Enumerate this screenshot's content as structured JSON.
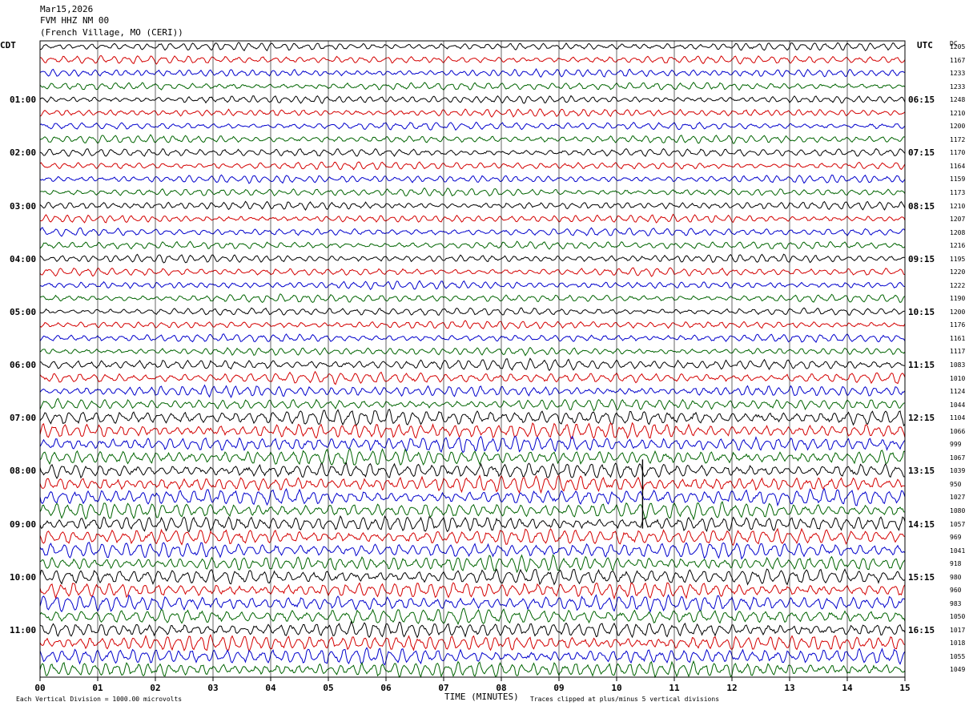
{
  "header": {
    "date": "Mar15,2026",
    "station": "FVM HHZ NM 00",
    "location": "(French Village, MO (CERI))"
  },
  "left_tz": "CDT",
  "right_tz": "UTC",
  "right_col_header": "DC",
  "footer": {
    "left_note": "Each Vertical Division = 1000.00 microvolts",
    "xlabel": "TIME (MINUTES)",
    "right_note": "Traces clipped at plus/minus 5 vertical divisions"
  },
  "chart_data": {
    "type": "line",
    "title": "",
    "xlabel": "TIME (MINUTES)",
    "ylabel": "",
    "xlim": [
      0,
      15
    ],
    "x_ticks": [
      "00",
      "01",
      "02",
      "03",
      "04",
      "05",
      "06",
      "07",
      "08",
      "09",
      "10",
      "11",
      "12",
      "13",
      "14",
      "15"
    ],
    "grid": true,
    "trace_colors": [
      "#000000",
      "#d40000",
      "#0000cc",
      "#006400"
    ],
    "rows": 48,
    "cdt_labels": [
      "01:00",
      "02:00",
      "03:00",
      "04:00",
      "05:00",
      "06:00",
      "07:00",
      "08:00",
      "09:00",
      "10:00",
      "11:00"
    ],
    "utc_labels": [
      "06:15",
      "07:15",
      "08:15",
      "09:15",
      "10:15",
      "11:15",
      "12:15",
      "13:15",
      "14:15",
      "15:15",
      "16:15"
    ],
    "dc_offsets": [
      "1205",
      "1167",
      "1233",
      "1233",
      "1248",
      "1210",
      "1200",
      "1172",
      "1170",
      "1164",
      "1159",
      "1173",
      "1210",
      "1207",
      "1208",
      "1216",
      "1195",
      "1220",
      "1222",
      "1190",
      "1200",
      "1176",
      "1161",
      "1117",
      "1083",
      "1010",
      "1124",
      "1044",
      "1104",
      "1066",
      "999",
      "1067",
      "1039",
      "950",
      "1027",
      "1080",
      "1057",
      "969",
      "1041",
      "918",
      "980",
      "960",
      "983",
      "1050",
      "1017",
      "1018",
      "1055",
      "1049"
    ],
    "clip_divisions": 5
  }
}
